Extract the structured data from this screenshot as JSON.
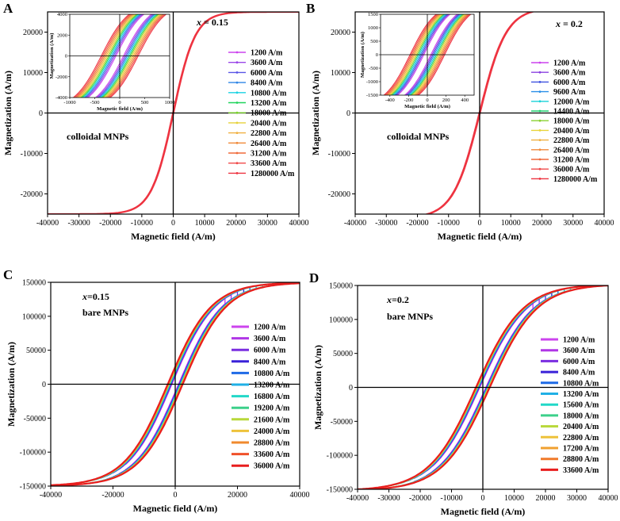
{
  "chart_data": [
    {
      "type": "line",
      "panel": "A",
      "xlabel": "Magnetic field (A/m)",
      "ylabel": "Magnetization (A/m)",
      "xlim": [
        -40000,
        40000
      ],
      "ylim": [
        -25000,
        25000
      ],
      "xticks": [
        -40000,
        -30000,
        -20000,
        -10000,
        0,
        10000,
        20000,
        30000,
        40000
      ],
      "yticks": [
        -20000,
        -10000,
        0,
        10000,
        20000
      ],
      "annotation_var": "x",
      "annotation_val": " = 0.15",
      "material": "colloidal MNPs",
      "Ms": 25000,
      "field_scale": 7000,
      "loop_width": 60,
      "series": [
        {
          "name": "1200 A/m",
          "color": "#cc44ee"
        },
        {
          "name": "3600 A/m",
          "color": "#9a46e8"
        },
        {
          "name": "6000 A/m",
          "color": "#5a55e6"
        },
        {
          "name": "8400 A/m",
          "color": "#2f86e6"
        },
        {
          "name": "10800 A/m",
          "color": "#18d2e2"
        },
        {
          "name": "13200 A/m",
          "color": "#1fd45a"
        },
        {
          "name": "18000 A/m",
          "color": "#7ad12c"
        },
        {
          "name": "20400 A/m",
          "color": "#e6d23a"
        },
        {
          "name": "22800 A/m",
          "color": "#f0b040"
        },
        {
          "name": "26400 A/m",
          "color": "#f08a3a"
        },
        {
          "name": "31200 A/m",
          "color": "#f06a3a"
        },
        {
          "name": "33600 A/m",
          "color": "#f04a4a"
        },
        {
          "name": "1280000 A/m",
          "color": "#ee3340"
        }
      ],
      "inset": {
        "xlabel": "Magnetic field (A/m)",
        "ylabel": "Magnetization (A/m)",
        "xlim": [
          -1000,
          1000
        ],
        "ylim": [
          -4000,
          4000
        ],
        "xticks": [
          -1000,
          -500,
          0,
          500,
          1000
        ],
        "yticks": [
          -4000,
          -2000,
          0,
          2000,
          4000
        ]
      }
    },
    {
      "type": "line",
      "panel": "B",
      "xlabel": "Magnetic field (A/m)",
      "ylabel": "Magnetization (A/m)",
      "xlim": [
        -40000,
        40000
      ],
      "ylim": [
        -25000,
        25000
      ],
      "xticks": [
        -40000,
        -30000,
        -20000,
        -10000,
        0,
        10000,
        20000,
        30000,
        40000
      ],
      "yticks": [
        -20000,
        -10000,
        0,
        10000,
        20000
      ],
      "annotation_var": "x",
      "annotation_val": " = 0.2",
      "material": "colloidal MNPs",
      "Ms": 26000,
      "field_scale": 8500,
      "loop_width": 80,
      "series": [
        {
          "name": "1200 A/m",
          "color": "#cc44ee"
        },
        {
          "name": "3600 A/m",
          "color": "#8a40e0"
        },
        {
          "name": "6000 A/m",
          "color": "#3f52e0"
        },
        {
          "name": "9600 A/m",
          "color": "#2a8fe8"
        },
        {
          "name": "12000 A/m",
          "color": "#18d2d8"
        },
        {
          "name": "14400 A/m",
          "color": "#20d070"
        },
        {
          "name": "18000 A/m",
          "color": "#8ad030"
        },
        {
          "name": "20400 A/m",
          "color": "#e8d43a"
        },
        {
          "name": "22800 A/m",
          "color": "#f0b040"
        },
        {
          "name": "26400 A/m",
          "color": "#f08a3a"
        },
        {
          "name": "31200 A/m",
          "color": "#f06a3a"
        },
        {
          "name": "36000 A/m",
          "color": "#f04a4a"
        },
        {
          "name": "1280000 A/m",
          "color": "#ee3340"
        }
      ],
      "inset": {
        "xlabel": "Magnetic field (A/m)",
        "ylabel": "Magnetization (A/m)",
        "xlim": [
          -500,
          500
        ],
        "ylim": [
          -1500,
          1500
        ],
        "xticks": [
          -400,
          -200,
          0,
          200,
          400
        ],
        "yticks": [
          -1500,
          -1000,
          -500,
          0,
          500,
          1000,
          1500
        ]
      }
    },
    {
      "type": "line",
      "panel": "C",
      "xlabel": "Magnetic field (A/m)",
      "ylabel": "Magnetization (A/m)",
      "xlim": [
        -40000,
        40000
      ],
      "ylim": [
        -150000,
        150000
      ],
      "xticks": [
        -40000,
        -20000,
        0,
        20000,
        40000
      ],
      "yticks": [
        -150000,
        -100000,
        -50000,
        0,
        50000,
        100000,
        150000
      ],
      "annotation_var": "x",
      "annotation_val": "=0.15",
      "material": "bare MNPs",
      "Ms": 150000,
      "field_scale": 14000,
      "loop_width": 2400,
      "series": [
        {
          "name": "1200 A/m",
          "color": "#cc44ee"
        },
        {
          "name": "3600 A/m",
          "color": "#b036e6"
        },
        {
          "name": "6000 A/m",
          "color": "#7a2ee0"
        },
        {
          "name": "8400 A/m",
          "color": "#3a22d8"
        },
        {
          "name": "10800 A/m",
          "color": "#1e6ae6"
        },
        {
          "name": "13200 A/m",
          "color": "#20b0e6"
        },
        {
          "name": "16800 A/m",
          "color": "#22d8c8"
        },
        {
          "name": "19200 A/m",
          "color": "#3cd08a"
        },
        {
          "name": "21600 A/m",
          "color": "#b8d83a"
        },
        {
          "name": "24000 A/m",
          "color": "#eec23a"
        },
        {
          "name": "28800 A/m",
          "color": "#f08a2e"
        },
        {
          "name": "33600 A/m",
          "color": "#f0502a"
        },
        {
          "name": "36000 A/m",
          "color": "#e81e1e"
        }
      ]
    },
    {
      "type": "line",
      "panel": "D",
      "xlabel": "Magnetic field (A/m)",
      "ylabel": "Magnetization (A/m)",
      "xlim": [
        -40000,
        40000
      ],
      "ylim": [
        -150000,
        150000
      ],
      "xticks": [
        -40000,
        -30000,
        -20000,
        -10000,
        0,
        10000,
        20000,
        30000,
        40000
      ],
      "yticks": [
        -150000,
        -100000,
        -50000,
        0,
        50000,
        100000,
        150000
      ],
      "annotation_var": "x",
      "annotation_val": "=0.2",
      "material": "bare MNPs",
      "Ms": 152000,
      "field_scale": 15000,
      "loop_width": 2200,
      "series": [
        {
          "name": "1200 A/m",
          "color": "#cc44ee"
        },
        {
          "name": "3600 A/m",
          "color": "#b036e6"
        },
        {
          "name": "6000 A/m",
          "color": "#7a2ee0"
        },
        {
          "name": "8400 A/m",
          "color": "#3a22d8"
        },
        {
          "name": "10800 A/m",
          "color": "#1e6ae6"
        },
        {
          "name": "13200 A/m",
          "color": "#20b0e6"
        },
        {
          "name": "15600 A/m",
          "color": "#22d8c8"
        },
        {
          "name": "18000 A/m",
          "color": "#3cd08a"
        },
        {
          "name": "20400 A/m",
          "color": "#b8d83a"
        },
        {
          "name": "22800 A/m",
          "color": "#eec23a"
        },
        {
          "name": "17200 A/m",
          "color": "#f0a030"
        },
        {
          "name": "28800 A/m",
          "color": "#f07a2a"
        },
        {
          "name": "33600 A/m",
          "color": "#e81e1e"
        }
      ]
    }
  ]
}
